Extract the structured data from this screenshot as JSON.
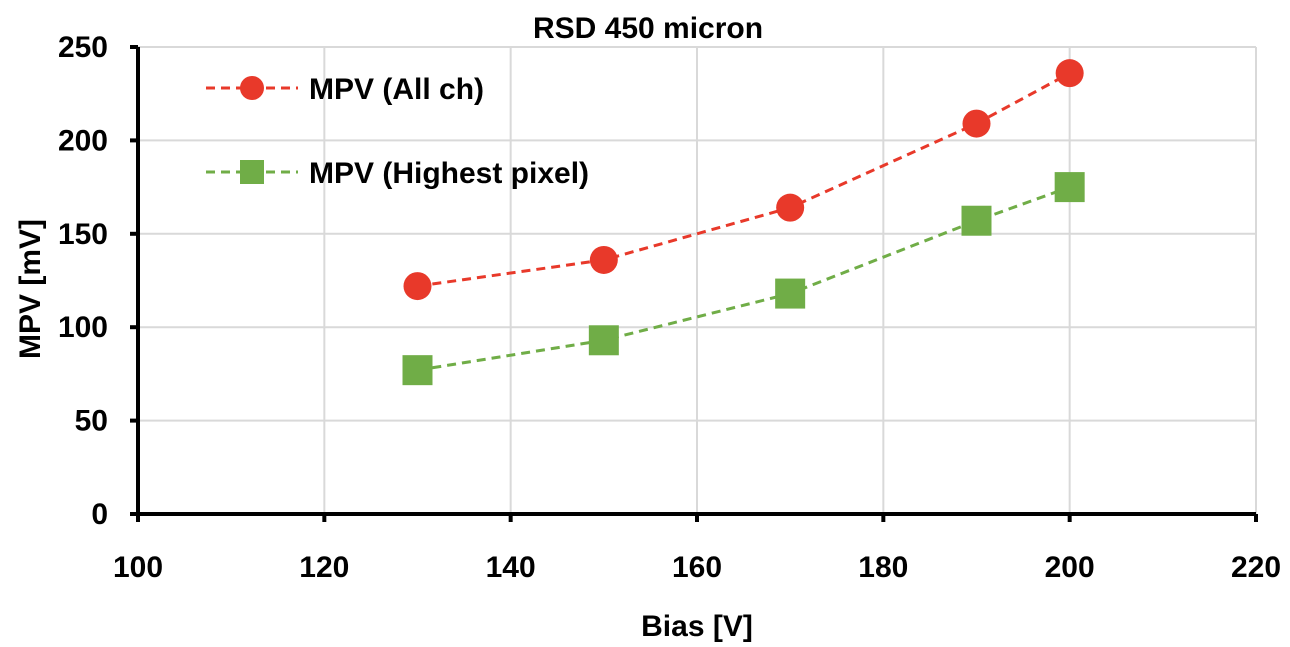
{
  "chart_data": {
    "type": "line",
    "title": "RSD 450 micron",
    "xlabel": "Bias [V]",
    "ylabel": "MPV [mV]",
    "xlim": [
      100,
      220
    ],
    "ylim": [
      0,
      250
    ],
    "xticks": [
      100,
      120,
      140,
      160,
      180,
      200,
      220
    ],
    "yticks": [
      0,
      50,
      100,
      150,
      200,
      250
    ],
    "grid": true,
    "legend_position": "top-left",
    "series": [
      {
        "name": "MPV (All ch)",
        "marker": "circle",
        "line_style": "dashed",
        "color": "#e8392a",
        "x": [
          130,
          150,
          170,
          190,
          200
        ],
        "y": [
          122,
          136,
          164,
          209,
          236
        ]
      },
      {
        "name": "MPV (Highest pixel)",
        "marker": "square",
        "line_style": "dashed",
        "color": "#70ad47",
        "x": [
          130,
          150,
          170,
          190,
          200
        ],
        "y": [
          77,
          93,
          118,
          157,
          175
        ]
      }
    ]
  }
}
